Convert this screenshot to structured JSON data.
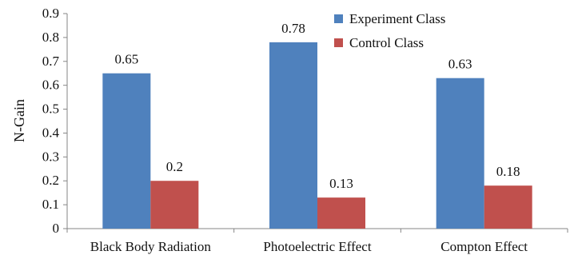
{
  "chart_data": {
    "type": "bar",
    "title": "",
    "xlabel": "",
    "ylabel": "N-Gain",
    "ylim": [
      0,
      0.9
    ],
    "yticks": [
      "0",
      "0.1",
      "0.2",
      "0.3",
      "0.4",
      "0.5",
      "0.6",
      "0.7",
      "0.8",
      "0.9"
    ],
    "grid": false,
    "legend_position": "top-right",
    "categories": [
      "Black Body Radiation",
      "Photoelectric Effect",
      "Compton Effect"
    ],
    "series": [
      {
        "name": "Experiment Class",
        "color": "#4f81bd",
        "values": [
          0.65,
          0.78,
          0.63
        ],
        "labels": [
          "0.65",
          "0.78",
          "0.63"
        ]
      },
      {
        "name": "Control Class",
        "color": "#c0504d",
        "values": [
          0.2,
          0.13,
          0.18
        ],
        "labels": [
          "0.2",
          "0.13",
          "0.18"
        ]
      }
    ]
  }
}
